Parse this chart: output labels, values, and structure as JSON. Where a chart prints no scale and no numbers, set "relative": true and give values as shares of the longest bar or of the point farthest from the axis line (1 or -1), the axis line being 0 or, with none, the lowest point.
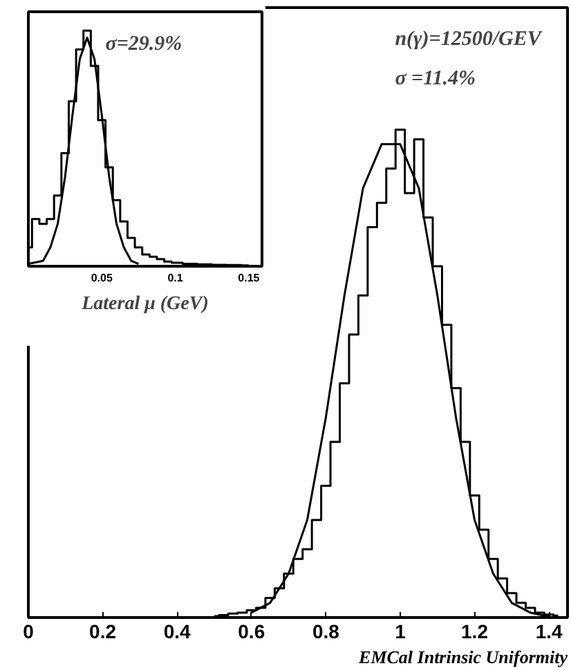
{
  "chart_data": [
    {
      "type": "step",
      "relative": true,
      "xlabel": "EMCal Intrinsic Uniformity",
      "xlim": [
        0,
        1.45
      ],
      "xticks": [
        0,
        0.2,
        0.4,
        0.6,
        0.8,
        1,
        1.2,
        1.4
      ],
      "tick_labels": "x",
      "grid": false,
      "annotations": [
        "n(γ)=12500/GEV",
        "σ =11.4%"
      ],
      "series": [
        {
          "type": "step",
          "color": "#000000",
          "x": [
            0.5,
            0.525,
            0.55,
            0.575,
            0.6,
            0.625,
            0.65,
            0.675,
            0.7,
            0.725,
            0.75,
            0.775,
            0.8,
            0.825,
            0.85,
            0.875,
            0.9,
            0.925,
            0.95,
            0.975,
            1.0,
            1.025,
            1.05,
            1.075,
            1.1,
            1.125,
            1.15,
            1.175,
            1.2,
            1.225,
            1.25,
            1.275,
            1.3,
            1.325,
            1.35,
            1.375,
            1.4,
            1.425
          ],
          "values": [
            0.003,
            0.005,
            0.008,
            0.01,
            0.015,
            0.02,
            0.04,
            0.06,
            0.09,
            0.12,
            0.14,
            0.2,
            0.27,
            0.36,
            0.48,
            0.58,
            0.66,
            0.8,
            0.85,
            0.92,
            1.0,
            0.87,
            0.98,
            0.82,
            0.72,
            0.6,
            0.47,
            0.36,
            0.25,
            0.18,
            0.12,
            0.08,
            0.05,
            0.03,
            0.02,
            0.01,
            0.006,
            0.004
          ]
        },
        {
          "type": "line",
          "color": "#000000",
          "x": [
            0.6,
            0.65,
            0.7,
            0.75,
            0.8,
            0.85,
            0.9,
            0.95,
            1.0,
            1.05,
            1.1,
            1.15,
            1.2,
            1.25,
            1.3,
            1.35,
            1.4
          ],
          "values": [
            0.01,
            0.03,
            0.09,
            0.2,
            0.41,
            0.66,
            0.88,
            0.97,
            0.97,
            0.88,
            0.66,
            0.41,
            0.2,
            0.09,
            0.03,
            0.01,
            0.002
          ]
        }
      ]
    },
    {
      "type": "step",
      "relative": true,
      "xlabel": "Lateral μ (GeV)",
      "xlim": [
        0,
        0.159
      ],
      "xticks": [
        0.05,
        0.1,
        0.15
      ],
      "tick_labels": "x",
      "grid": false,
      "annotations": [
        "σ=29.9%"
      ],
      "series": [
        {
          "type": "step",
          "color": "#000000",
          "x": [
            0.0,
            0.005,
            0.01,
            0.015,
            0.02,
            0.025,
            0.03,
            0.035,
            0.04,
            0.045,
            0.05,
            0.055,
            0.06,
            0.065,
            0.07,
            0.075,
            0.08,
            0.085,
            0.09,
            0.095,
            0.1,
            0.11,
            0.12,
            0.13,
            0.14,
            0.15
          ],
          "values": [
            0.08,
            0.2,
            0.18,
            0.2,
            0.3,
            0.48,
            0.7,
            0.92,
            1.0,
            0.85,
            0.62,
            0.42,
            0.28,
            0.19,
            0.12,
            0.08,
            0.05,
            0.04,
            0.03,
            0.02,
            0.015,
            0.01,
            0.008,
            0.006,
            0.005,
            0.004
          ]
        },
        {
          "type": "line",
          "color": "#000000",
          "x": [
            0.0,
            0.01,
            0.015,
            0.02,
            0.025,
            0.03,
            0.035,
            0.04,
            0.045,
            0.05,
            0.055,
            0.06,
            0.065,
            0.07,
            0.075
          ],
          "values": [
            0.01,
            0.023,
            0.08,
            0.18,
            0.38,
            0.64,
            0.88,
            0.97,
            0.88,
            0.64,
            0.38,
            0.18,
            0.08,
            0.023,
            0.01
          ]
        }
      ]
    }
  ]
}
